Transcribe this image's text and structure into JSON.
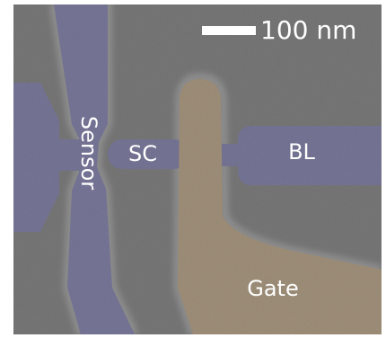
{
  "scale_bar": {
    "label": "100 nm"
  },
  "labels": {
    "sensor": "Sensor",
    "sc": "SC",
    "bl": "BL",
    "gate": "Gate"
  }
}
